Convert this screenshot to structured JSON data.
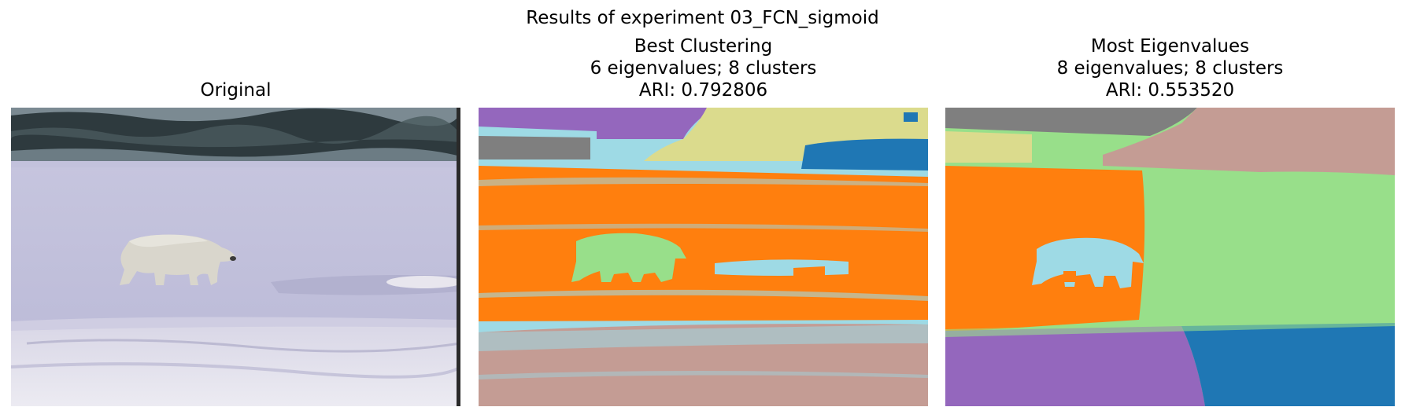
{
  "figure": {
    "title": "Results of experiment 03_FCN_sigmoid"
  },
  "panels": {
    "original": {
      "title": "Original"
    },
    "best": {
      "title_line1": "Best Clustering",
      "title_line2": "6 eigenvalues; 8 clusters",
      "title_line3": "ARI: 0.792806"
    },
    "most": {
      "title_line1": "Most Eigenvalues",
      "title_line2": "8 eigenvalues; 8 clusters",
      "title_line3": "ARI: 0.553520"
    }
  },
  "colors": {
    "purple": "#9467bd",
    "gray": "#7f7f7f",
    "olive": "#dbdb8d",
    "blue": "#1f77b4",
    "lightblue": "#9edae5",
    "orange": "#ff7f0e",
    "lightgreen": "#98df8a",
    "pink": "#c49c94"
  }
}
